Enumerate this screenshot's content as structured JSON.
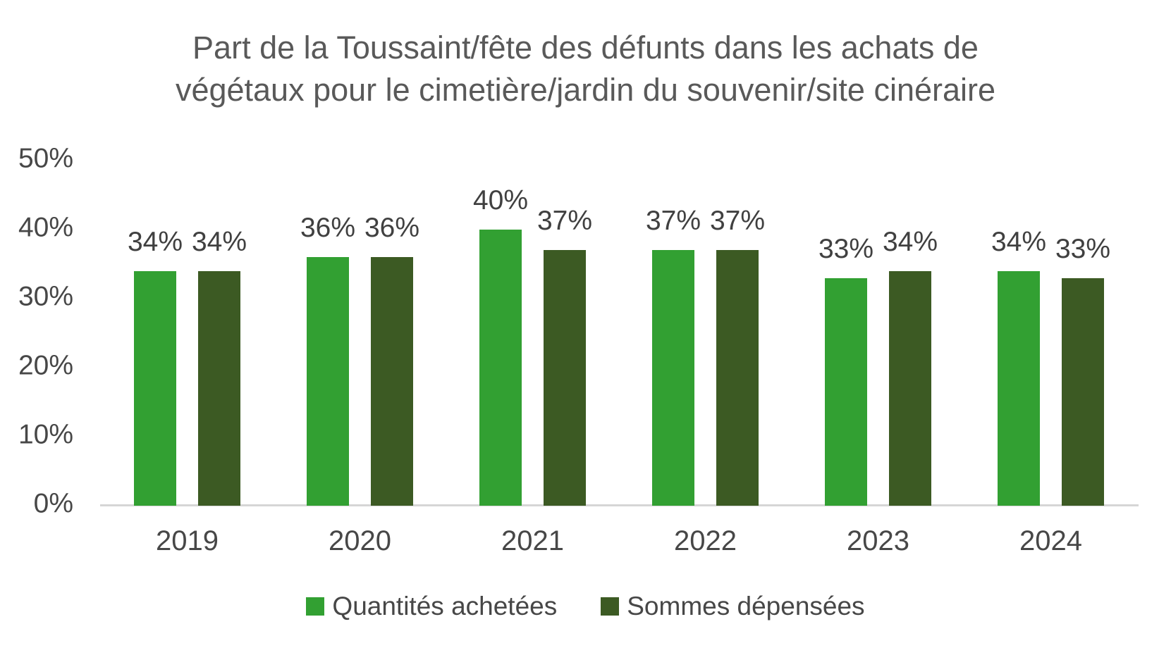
{
  "chart_data": {
    "type": "bar",
    "title": "Part de la Toussaint/fête des défunts dans les achats de végétaux pour le cimetière/jardin du souvenir/site cinéraire",
    "title_lines": [
      "Part de la Toussaint/fête des défunts dans les achats de",
      "végétaux pour le cimetière/jardin du souvenir/site cinéraire"
    ],
    "categories": [
      "2019",
      "2020",
      "2021",
      "2022",
      "2023",
      "2024"
    ],
    "series": [
      {
        "name": "Quantités achetées",
        "color": "#32A032",
        "values": [
          34,
          36,
          40,
          37,
          33,
          34
        ]
      },
      {
        "name": "Sommes dépensées",
        "color": "#3C5A23",
        "values": [
          34,
          36,
          37,
          37,
          34,
          33
        ]
      }
    ],
    "value_suffix": "%",
    "ylim": [
      0,
      50
    ],
    "yticks": [
      0,
      10,
      20,
      30,
      40,
      50
    ],
    "ytick_suffix": "%",
    "grid": false,
    "data_labels": true,
    "legend_position": "bottom"
  },
  "colors": {
    "series1": "#32A032",
    "series2": "#3C5A23",
    "title_text": "#595959",
    "axis_text": "#474747",
    "data_label_text": "#404040",
    "axis_line": "#D6D6D6",
    "background": "#FFFFFF"
  }
}
